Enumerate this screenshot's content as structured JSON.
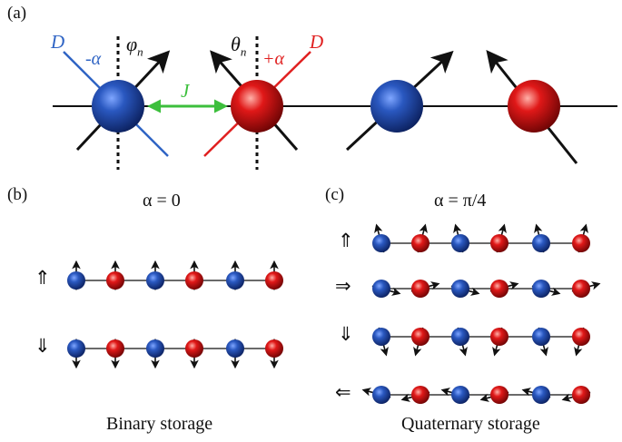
{
  "panels": {
    "a": "(a)",
    "b": "(b)",
    "c": "(c)"
  },
  "labels": {
    "D_left": "D",
    "minus_alpha": "-α",
    "phi_n": "φ",
    "phi_sub": "n",
    "theta_n": "θ",
    "theta_sub": "n",
    "plus_alpha": "+α",
    "D_right": "D",
    "J": "J"
  },
  "titles": {
    "b": "α = 0",
    "c": "α = π/4"
  },
  "captions": {
    "b": "Binary storage",
    "c": "Quaternary storage"
  },
  "state_arrows": {
    "b_up": "⇑",
    "b_down": "⇓",
    "c_up": "⇑",
    "c_right": "⇒",
    "c_down": "⇓",
    "c_left": "⇐"
  },
  "colors": {
    "blue": "#1f4fb3",
    "red": "#d01010",
    "green": "#3cbf3c",
    "black": "#111111",
    "D_blue_line": "#2f64c4",
    "D_red_line": "#e02020"
  }
}
